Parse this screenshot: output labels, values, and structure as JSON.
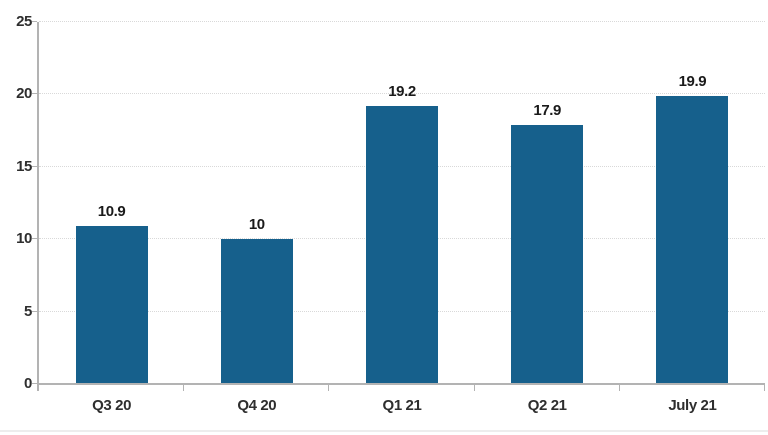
{
  "chart_data": {
    "type": "bar",
    "title": "",
    "xlabel": "",
    "ylabel": "",
    "categories": [
      "Q3 20",
      "Q4 20",
      "Q1 21",
      "Q2 21",
      "July 21"
    ],
    "values": [
      10.9,
      10,
      19.2,
      17.9,
      19.9
    ],
    "data_labels": [
      "10.9",
      "10",
      "19.2",
      "17.9",
      "19.9"
    ],
    "ylim": [
      0,
      25
    ],
    "yticks": [
      0,
      5,
      10,
      15,
      20,
      25
    ],
    "ytick_labels": [
      "0",
      "5",
      "10",
      "15",
      "20",
      "25"
    ],
    "grid": "horizontal-dotted",
    "legend_position": "none",
    "colors": {
      "bar": "#16608C",
      "data_label": "#1a1a1a",
      "tick_label": "#2e2e2e",
      "axis_line": "#b3b3b3",
      "grid_line": "#d9d9d9",
      "background": "#ffffff"
    }
  }
}
